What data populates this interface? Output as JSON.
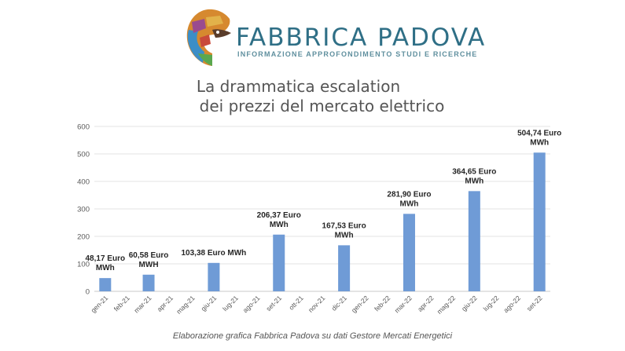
{
  "header": {
    "brand_name": "FABBRICA PADOVA",
    "brand_tagline": "INFORMAZIONE APPROFONDIMENTO STUDI E RICERCHE",
    "brand_color": "#2f6f86"
  },
  "chart_data": {
    "type": "bar",
    "title_line1": "La drammatica escalation",
    "title_line2": "dei prezzi del mercato elettrico",
    "categories": [
      "gen-21",
      "feb-21",
      "mar-21",
      "apr-21",
      "mag-21",
      "giu-21",
      "lug-21",
      "ago-21",
      "set-21",
      "ott-21",
      "nov-21",
      "dic-21",
      "gen-22",
      "feb-22",
      "mar-22",
      "apr-22",
      "mag-22",
      "giu-22",
      "lug-22",
      "ago-22",
      "set-22"
    ],
    "values": [
      48.17,
      null,
      60.58,
      null,
      null,
      103.38,
      null,
      null,
      206.37,
      null,
      null,
      167.53,
      null,
      null,
      281.9,
      null,
      null,
      364.65,
      null,
      null,
      504.74
    ],
    "data_labels": [
      [
        "48,17 Euro",
        "MWh"
      ],
      null,
      [
        "60,58 Euro",
        "MWH"
      ],
      null,
      null,
      [
        "103,38 Euro MWh"
      ],
      null,
      null,
      [
        "206,37 Euro",
        "MWh"
      ],
      null,
      null,
      [
        "167,53 Euro",
        "MWh"
      ],
      null,
      null,
      [
        "281,90 Euro",
        "MWh"
      ],
      null,
      null,
      [
        "364,65 Euro",
        "MWh"
      ],
      null,
      null,
      [
        "504,74 Euro",
        "MWh"
      ]
    ],
    "yticks": [
      "0",
      "100",
      "200",
      "300",
      "400",
      "500",
      "600"
    ],
    "ylim": [
      0,
      600
    ],
    "bar_color": "#6f9bd6",
    "grid": true
  },
  "caption": "Elaborazione grafica Fabbrica Padova su dati Gestore Mercati Energetici"
}
